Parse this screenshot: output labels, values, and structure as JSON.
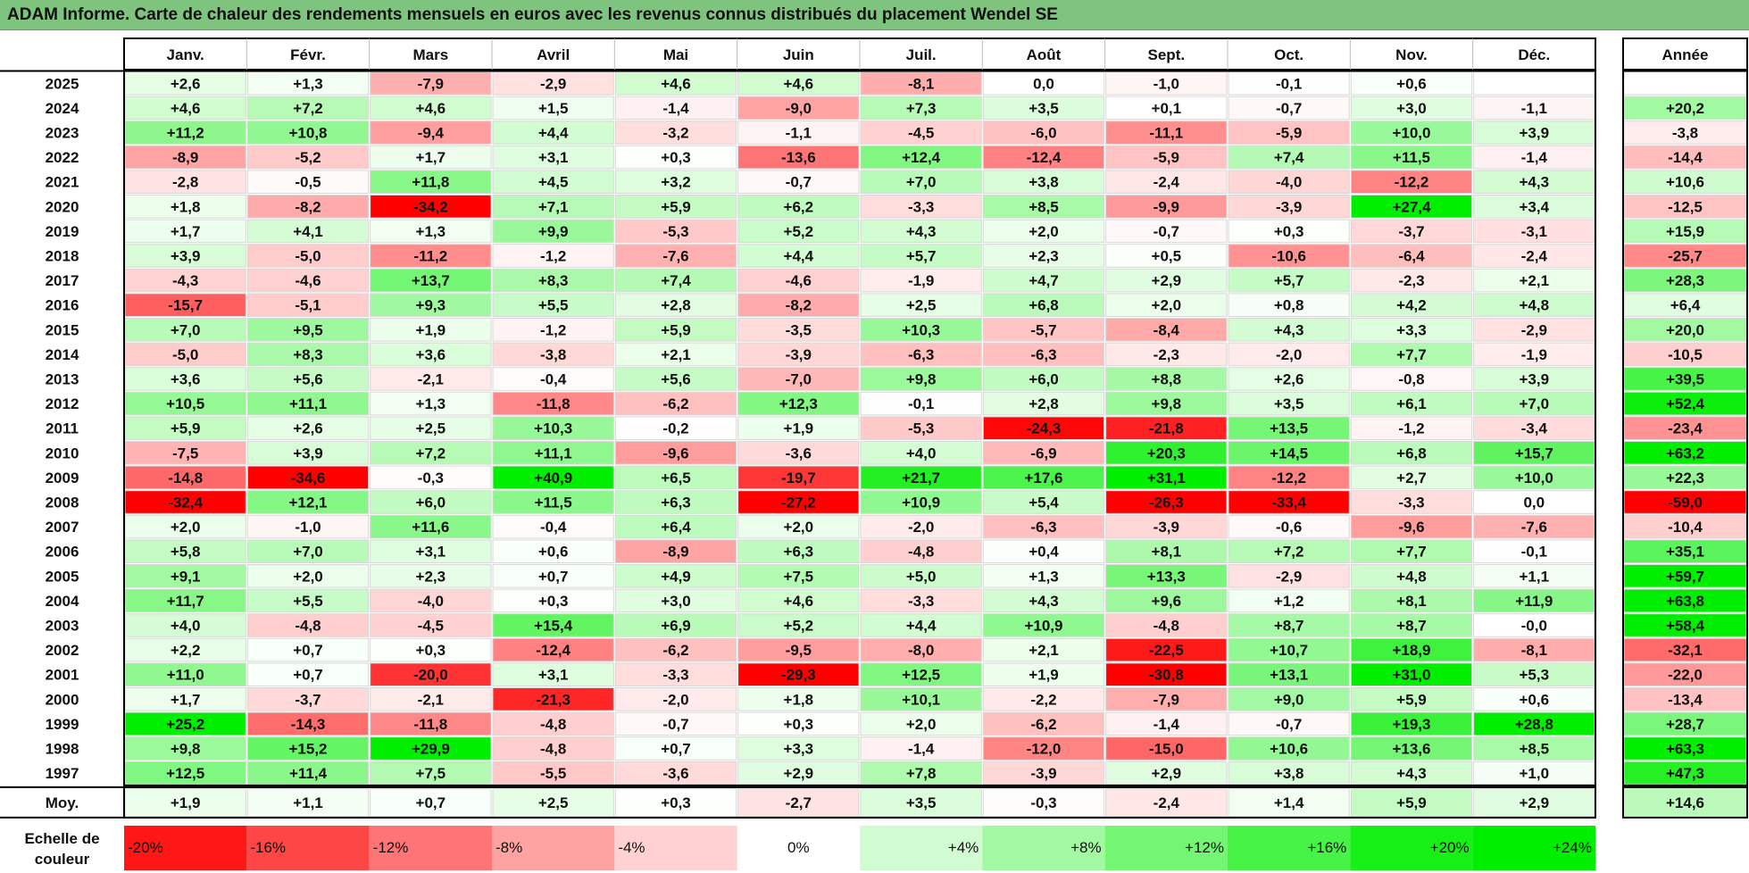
{
  "title": "ADAM Informe. Carte de chaleur des rendements mensuels en euros avec les revenus connus distribués du placement Wendel SE",
  "chart_data": {
    "type": "heatmap",
    "title": "ADAM Informe. Carte de chaleur des rendements mensuels en euros avec les revenus connus distribués du placement Wendel SE",
    "months": [
      "Janv.",
      "Févr.",
      "Mars",
      "Avril",
      "Mai",
      "Juin",
      "Juil.",
      "Août",
      "Sept.",
      "Oct.",
      "Nov.",
      "Déc."
    ],
    "year_header": "Année",
    "rows": [
      {
        "year": "2025",
        "months": [
          "+2,6",
          "+1,3",
          "-7,9",
          "-2,9",
          "+4,6",
          "+4,6",
          "-8,1",
          "0,0",
          "-1,0",
          "-0,1",
          "+0,6",
          ""
        ],
        "annual": ""
      },
      {
        "year": "2024",
        "months": [
          "+4,6",
          "+7,2",
          "+4,6",
          "+1,5",
          "-1,4",
          "-9,0",
          "+7,3",
          "+3,5",
          "+0,1",
          "-0,7",
          "+3,0",
          "-1,1"
        ],
        "annual": "+20,2"
      },
      {
        "year": "2023",
        "months": [
          "+11,2",
          "+10,8",
          "-9,4",
          "+4,4",
          "-3,2",
          "-1,1",
          "-4,5",
          "-6,0",
          "-11,1",
          "-5,9",
          "+10,0",
          "+3,9"
        ],
        "annual": "-3,8"
      },
      {
        "year": "2022",
        "months": [
          "-8,9",
          "-5,2",
          "+1,7",
          "+3,1",
          "+0,3",
          "-13,6",
          "+12,4",
          "-12,4",
          "-5,9",
          "+7,4",
          "+11,5",
          "-1,4"
        ],
        "annual": "-14,4"
      },
      {
        "year": "2021",
        "months": [
          "-2,8",
          "-0,5",
          "+11,8",
          "+4,5",
          "+3,2",
          "-0,7",
          "+7,0",
          "+3,8",
          "-2,4",
          "-4,0",
          "-12,2",
          "+4,3"
        ],
        "annual": "+10,6"
      },
      {
        "year": "2020",
        "months": [
          "+1,8",
          "-8,2",
          "-34,2",
          "+7,1",
          "+5,9",
          "+6,2",
          "-3,3",
          "+8,5",
          "-9,9",
          "-3,9",
          "+27,4",
          "+3,4"
        ],
        "annual": "-12,5"
      },
      {
        "year": "2019",
        "months": [
          "+1,7",
          "+4,1",
          "+1,3",
          "+9,9",
          "-5,3",
          "+5,2",
          "+4,3",
          "+2,0",
          "-0,7",
          "+0,3",
          "-3,7",
          "-3,1"
        ],
        "annual": "+15,9"
      },
      {
        "year": "2018",
        "months": [
          "+3,9",
          "-5,0",
          "-11,2",
          "-1,2",
          "-7,6",
          "+4,4",
          "+5,7",
          "+2,3",
          "+0,5",
          "-10,6",
          "-6,4",
          "-2,4"
        ],
        "annual": "-25,7"
      },
      {
        "year": "2017",
        "months": [
          "-4,3",
          "-4,6",
          "+13,7",
          "+8,3",
          "+7,4",
          "-4,6",
          "-1,9",
          "+4,7",
          "+2,9",
          "+5,7",
          "-2,3",
          "+2,1"
        ],
        "annual": "+28,3"
      },
      {
        "year": "2016",
        "months": [
          "-15,7",
          "-5,1",
          "+9,3",
          "+5,5",
          "+2,8",
          "-8,2",
          "+2,5",
          "+6,8",
          "+2,0",
          "+0,8",
          "+4,2",
          "+4,8"
        ],
        "annual": "+6,4"
      },
      {
        "year": "2015",
        "months": [
          "+7,0",
          "+9,5",
          "+1,9",
          "-1,2",
          "+5,9",
          "-3,5",
          "+10,3",
          "-5,7",
          "-8,4",
          "+4,3",
          "+3,3",
          "-2,9"
        ],
        "annual": "+20,0"
      },
      {
        "year": "2014",
        "months": [
          "-5,0",
          "+8,3",
          "+3,6",
          "-3,8",
          "+2,1",
          "-3,9",
          "-6,3",
          "-6,3",
          "-2,3",
          "-2,0",
          "+7,7",
          "-1,9"
        ],
        "annual": "-10,5"
      },
      {
        "year": "2013",
        "months": [
          "+3,6",
          "+5,6",
          "-2,1",
          "-0,4",
          "+5,6",
          "-7,0",
          "+9,8",
          "+6,0",
          "+8,8",
          "+2,6",
          "-0,8",
          "+3,9"
        ],
        "annual": "+39,5"
      },
      {
        "year": "2012",
        "months": [
          "+10,5",
          "+11,1",
          "+1,3",
          "-11,8",
          "-6,2",
          "+12,3",
          "-0,1",
          "+2,8",
          "+9,8",
          "+3,5",
          "+6,1",
          "+7,0"
        ],
        "annual": "+52,4"
      },
      {
        "year": "2011",
        "months": [
          "+5,9",
          "+2,6",
          "+2,5",
          "+10,3",
          "-0,2",
          "+1,9",
          "-5,3",
          "-24,3",
          "-21,8",
          "+13,5",
          "-1,2",
          "-3,4"
        ],
        "annual": "-23,4"
      },
      {
        "year": "2010",
        "months": [
          "-7,5",
          "+3,9",
          "+7,2",
          "+11,1",
          "-9,6",
          "-3,6",
          "+4,0",
          "-6,9",
          "+20,3",
          "+14,5",
          "+6,8",
          "+15,7"
        ],
        "annual": "+63,2"
      },
      {
        "year": "2009",
        "months": [
          "-14,8",
          "-34,6",
          "-0,3",
          "+40,9",
          "+6,5",
          "-19,7",
          "+21,7",
          "+17,6",
          "+31,1",
          "-12,2",
          "+2,7",
          "+10,0"
        ],
        "annual": "+22,3"
      },
      {
        "year": "2008",
        "months": [
          "-32,4",
          "+12,1",
          "+6,0",
          "+11,5",
          "+6,3",
          "-27,2",
          "+10,9",
          "+5,4",
          "-26,3",
          "-33,4",
          "-3,3",
          "0,0"
        ],
        "annual": "-59,0"
      },
      {
        "year": "2007",
        "months": [
          "+2,0",
          "-1,0",
          "+11,6",
          "-0,4",
          "+6,4",
          "+2,0",
          "-2,0",
          "-6,3",
          "-3,9",
          "-0,6",
          "-9,6",
          "-7,6"
        ],
        "annual": "-10,4"
      },
      {
        "year": "2006",
        "months": [
          "+5,8",
          "+7,0",
          "+3,1",
          "+0,6",
          "-8,9",
          "+6,3",
          "-4,8",
          "+0,4",
          "+8,1",
          "+7,2",
          "+7,7",
          "-0,1"
        ],
        "annual": "+35,1"
      },
      {
        "year": "2005",
        "months": [
          "+9,1",
          "+2,0",
          "+2,3",
          "+0,7",
          "+4,9",
          "+7,5",
          "+5,0",
          "+1,3",
          "+13,3",
          "-2,9",
          "+4,8",
          "+1,1"
        ],
        "annual": "+59,7"
      },
      {
        "year": "2004",
        "months": [
          "+11,7",
          "+5,5",
          "-4,0",
          "+0,3",
          "+3,0",
          "+4,6",
          "-3,3",
          "+4,3",
          "+9,6",
          "+1,2",
          "+8,1",
          "+11,9"
        ],
        "annual": "+63,8"
      },
      {
        "year": "2003",
        "months": [
          "+4,0",
          "-4,8",
          "-4,5",
          "+15,4",
          "+6,9",
          "+5,2",
          "+4,4",
          "+10,9",
          "-4,8",
          "+8,7",
          "+8,7",
          "-0,0"
        ],
        "annual": "+58,4"
      },
      {
        "year": "2002",
        "months": [
          "+2,2",
          "+0,7",
          "+0,3",
          "-12,4",
          "-6,2",
          "-9,5",
          "-8,0",
          "+2,1",
          "-22,5",
          "+10,7",
          "+18,9",
          "-8,1"
        ],
        "annual": "-32,1"
      },
      {
        "year": "2001",
        "months": [
          "+11,0",
          "+0,7",
          "-20,0",
          "+3,1",
          "-3,3",
          "-29,3",
          "+12,5",
          "+1,9",
          "-30,8",
          "+13,1",
          "+31,0",
          "+5,3"
        ],
        "annual": "-22,0"
      },
      {
        "year": "2000",
        "months": [
          "+1,7",
          "-3,7",
          "-2,1",
          "-21,3",
          "-2,0",
          "+1,8",
          "+10,1",
          "-2,2",
          "-7,9",
          "+9,0",
          "+5,9",
          "+0,6"
        ],
        "annual": "-13,4"
      },
      {
        "year": "1999",
        "months": [
          "+25,2",
          "-14,3",
          "-11,8",
          "-4,8",
          "-0,7",
          "+0,3",
          "+2,0",
          "-6,2",
          "-1,4",
          "-0,7",
          "+19,3",
          "+28,8"
        ],
        "annual": "+28,7"
      },
      {
        "year": "1998",
        "months": [
          "+9,8",
          "+15,2",
          "+29,9",
          "-4,8",
          "+0,7",
          "+3,3",
          "-1,4",
          "-12,0",
          "-15,0",
          "+10,6",
          "+13,6",
          "+8,5"
        ],
        "annual": "+63,3"
      },
      {
        "year": "1997",
        "months": [
          "+12,5",
          "+11,4",
          "+7,5",
          "-5,5",
          "-3,6",
          "+2,9",
          "+7,8",
          "-3,9",
          "+2,9",
          "+3,8",
          "+4,3",
          "+1,0"
        ],
        "annual": "+47,3"
      }
    ],
    "average": {
      "label": "Moy.",
      "months": [
        "+1,9",
        "+1,1",
        "+0,7",
        "+2,5",
        "+0,3",
        "-2,7",
        "+3,5",
        "-0,3",
        "-2,4",
        "+1,4",
        "+5,9",
        "+2,9"
      ],
      "annual": "+14,6"
    },
    "scale": {
      "label": "Echelle de couleur",
      "stops": [
        "-20%",
        "-16%",
        "-12%",
        "-8%",
        "-4%",
        "0%",
        "+4%",
        "+8%",
        "+12%",
        "+16%",
        "+20%",
        "+24%"
      ],
      "values": [
        -20,
        -16,
        -12,
        -8,
        -4,
        0,
        4,
        8,
        12,
        16,
        20,
        24
      ]
    },
    "colors": {
      "strong_negative": "#ff0000",
      "neutral": "#ffffff",
      "strong_positive": "#00ee00",
      "title_bar": "#7ec47e"
    }
  }
}
